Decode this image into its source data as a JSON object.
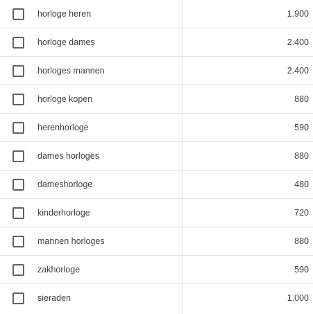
{
  "table": {
    "rows": [
      {
        "keyword": "horloge heren",
        "volume": "1.900"
      },
      {
        "keyword": "horloge dames",
        "volume": "2.400"
      },
      {
        "keyword": "horloges mannen",
        "volume": "2.400"
      },
      {
        "keyword": "horloge kopen",
        "volume": "880"
      },
      {
        "keyword": "herenhorloge",
        "volume": "590"
      },
      {
        "keyword": "dames horloges",
        "volume": "880"
      },
      {
        "keyword": "dameshorloge",
        "volume": "480"
      },
      {
        "keyword": "kinderhorloge",
        "volume": "720"
      },
      {
        "keyword": "mannen horloges",
        "volume": "880"
      },
      {
        "keyword": "zakhorloge",
        "volume": "590"
      },
      {
        "keyword": "sieraden",
        "volume": "1.000"
      }
    ]
  },
  "colors": {
    "checkbox_border": "#5f6368",
    "row_divider": "#e0e0e0",
    "text": "#3c4043"
  }
}
